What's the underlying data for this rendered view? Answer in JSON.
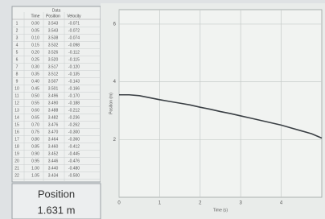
{
  "table": {
    "title": "Data",
    "headers": [
      "",
      "Time",
      "Position",
      "Velocity"
    ],
    "rows": [
      [
        "1",
        "0.00",
        "3.543",
        "-0.071"
      ],
      [
        "2",
        "0.05",
        "3.543",
        "-0.072"
      ],
      [
        "3",
        "0.10",
        "3.538",
        "-0.074"
      ],
      [
        "4",
        "0.15",
        "3.532",
        "-0.098"
      ],
      [
        "5",
        "0.20",
        "3.526",
        "-0.112"
      ],
      [
        "6",
        "0.25",
        "3.520",
        "-0.115"
      ],
      [
        "7",
        "0.30",
        "3.517",
        "-0.120"
      ],
      [
        "8",
        "0.35",
        "3.512",
        "-0.135"
      ],
      [
        "9",
        "0.40",
        "3.507",
        "-0.143"
      ],
      [
        "10",
        "0.45",
        "3.501",
        "-0.166"
      ],
      [
        "11",
        "0.50",
        "3.496",
        "-0.170"
      ],
      [
        "12",
        "0.55",
        "3.490",
        "-0.188"
      ],
      [
        "13",
        "0.60",
        "3.488",
        "-0.212"
      ],
      [
        "14",
        "0.65",
        "3.482",
        "-0.236"
      ],
      [
        "15",
        "0.70",
        "3.476",
        "-0.262"
      ],
      [
        "16",
        "0.75",
        "3.470",
        "-0.300"
      ],
      [
        "17",
        "0.80",
        "3.464",
        "-0.360"
      ],
      [
        "18",
        "0.85",
        "3.460",
        "-0.412"
      ],
      [
        "19",
        "0.90",
        "3.452",
        "-0.445"
      ],
      [
        "20",
        "0.95",
        "3.446",
        "-0.476"
      ],
      [
        "21",
        "1.00",
        "3.440",
        "-0.480"
      ],
      [
        "22",
        "1.05",
        "3.434",
        "-0.500"
      ]
    ]
  },
  "display": {
    "label": "Position",
    "value": "1.631 m"
  },
  "chart": {
    "type": "line",
    "x_label": "Time (s)",
    "y_label": "Position (m)",
    "xlim": [
      0,
      5
    ],
    "xticks": [
      0,
      1,
      2,
      3,
      4
    ],
    "ylim": [
      0,
      6.5
    ],
    "yticks": [
      2,
      4,
      6
    ],
    "grid": true,
    "x": [
      0,
      0.25,
      0.5,
      0.75,
      1,
      1.25,
      1.5,
      1.75,
      2,
      2.25,
      2.5,
      2.75,
      3,
      3.25,
      3.5,
      3.75,
      4,
      4.25,
      4.5,
      4.75,
      5
    ],
    "series": [
      {
        "color": "#3a3f44",
        "values": [
          3.55,
          3.55,
          3.52,
          3.45,
          3.38,
          3.32,
          3.26,
          3.2,
          3.12,
          3.05,
          2.97,
          2.9,
          2.82,
          2.74,
          2.66,
          2.58,
          2.5,
          2.4,
          2.3,
          2.2,
          2.05
        ]
      }
    ]
  }
}
